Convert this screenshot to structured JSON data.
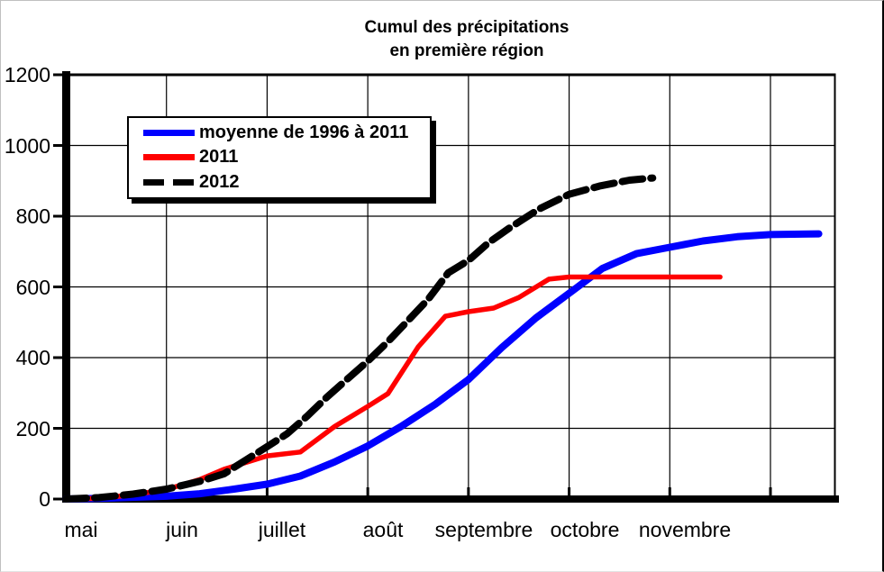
{
  "title": {
    "line1": "Cumul des précipitations",
    "line2": "en première région"
  },
  "legend": {
    "items": [
      {
        "label": "moyenne de 1996 à 2011",
        "color": "#0000ff",
        "style": "solid"
      },
      {
        "label": "2011",
        "color": "#ff0000",
        "style": "solid"
      },
      {
        "label": "2012",
        "color": "#000000",
        "style": "dashed"
      }
    ]
  },
  "y_axis": {
    "tick_labels": [
      "0",
      "200",
      "400",
      "600",
      "800",
      "1000",
      "1200"
    ]
  },
  "x_axis": {
    "month_labels": [
      "mai",
      "juin",
      "juillet",
      "août",
      "septembre",
      "octobre",
      "novembre"
    ]
  },
  "chart_data": {
    "type": "line",
    "title": "Cumul des précipitations en première région",
    "ylim": [
      0,
      1200
    ],
    "y_step": 200,
    "x_axis_unit": "months since 1 mai (0 = 1 mai, 1 = 1 juin, 2 = 1 juillet, ...)",
    "x_tick_labels": [
      "mai",
      "juin",
      "juillet",
      "août",
      "septembre",
      "octobre",
      "novembre"
    ],
    "grid": true,
    "legend_position": "upper-left",
    "series": [
      {
        "name": "moyenne de 1996 à 2011",
        "color": "#0000ff",
        "line_style": "solid",
        "stroke_width": 8,
        "points": [
          [
            0,
            0
          ],
          [
            0.5,
            3
          ],
          [
            1,
            8
          ],
          [
            1.33,
            15
          ],
          [
            1.67,
            28
          ],
          [
            2,
            42
          ],
          [
            2.33,
            65
          ],
          [
            2.67,
            105
          ],
          [
            3,
            150
          ],
          [
            3.33,
            205
          ],
          [
            3.67,
            268
          ],
          [
            4,
            338
          ],
          [
            4.33,
            428
          ],
          [
            4.67,
            512
          ],
          [
            5,
            582
          ],
          [
            5.33,
            652
          ],
          [
            5.67,
            694
          ],
          [
            6,
            712
          ],
          [
            6.33,
            730
          ],
          [
            6.67,
            742
          ],
          [
            7,
            748
          ],
          [
            7.48,
            750
          ]
        ]
      },
      {
        "name": "2011",
        "color": "#ff0000",
        "line_style": "solid",
        "stroke_width": 5.5,
        "points": [
          [
            0,
            0
          ],
          [
            0.33,
            2
          ],
          [
            0.67,
            12
          ],
          [
            1,
            27
          ],
          [
            1.33,
            55
          ],
          [
            1.57,
            84
          ],
          [
            2,
            122
          ],
          [
            2.33,
            133
          ],
          [
            2.67,
            205
          ],
          [
            3,
            262
          ],
          [
            3.2,
            298
          ],
          [
            3.5,
            430
          ],
          [
            3.77,
            517
          ],
          [
            4,
            530
          ],
          [
            4.25,
            540
          ],
          [
            4.5,
            570
          ],
          [
            4.8,
            622
          ],
          [
            5,
            628
          ],
          [
            6.5,
            628
          ]
        ]
      },
      {
        "name": "2012",
        "color": "#000000",
        "line_style": "dashed",
        "stroke_width": 8,
        "dash": [
          23,
          9
        ],
        "points": [
          [
            0,
            0
          ],
          [
            0.33,
            4
          ],
          [
            0.67,
            14
          ],
          [
            1,
            28
          ],
          [
            1.33,
            50
          ],
          [
            1.57,
            71
          ],
          [
            2,
            148
          ],
          [
            2.2,
            185
          ],
          [
            2.4,
            235
          ],
          [
            2.6,
            290
          ],
          [
            2.8,
            340
          ],
          [
            3,
            390
          ],
          [
            3.2,
            445
          ],
          [
            3.4,
            505
          ],
          [
            3.6,
            565
          ],
          [
            3.8,
            640
          ],
          [
            4,
            675
          ],
          [
            4.2,
            725
          ],
          [
            4.4,
            765
          ],
          [
            4.7,
            820
          ],
          [
            5,
            862
          ],
          [
            5.3,
            885
          ],
          [
            5.6,
            902
          ],
          [
            5.83,
            908
          ]
        ]
      }
    ]
  }
}
